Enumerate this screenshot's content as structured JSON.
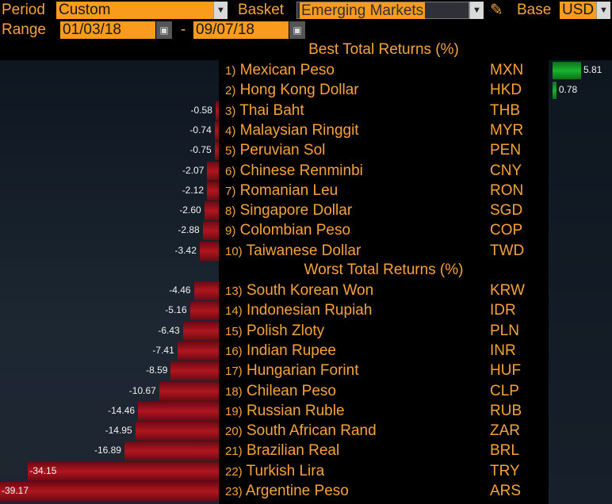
{
  "toolbar": {
    "period_label": "Period",
    "period_value": "Custom",
    "basket_label": "Basket",
    "basket_value": "Emerging Markets",
    "base_label": "Base",
    "base_value": "USD",
    "range_label": "Range",
    "range_start": "01/03/18",
    "range_sep": "-",
    "range_end": "09/07/18"
  },
  "best": {
    "title": "Best Total Returns (%)",
    "rows": [
      {
        "rank": "1)",
        "name": "Mexican Peso",
        "code": "MXN",
        "value": 5.81,
        "label": "5.81"
      },
      {
        "rank": "2)",
        "name": "Hong Kong Dollar",
        "code": "HKD",
        "value": 0.78,
        "label": "0.78"
      },
      {
        "rank": "3)",
        "name": "Thai Baht",
        "code": "THB",
        "value": -0.58,
        "label": "-0.58"
      },
      {
        "rank": "4)",
        "name": "Malaysian Ringgit",
        "code": "MYR",
        "value": -0.74,
        "label": "-0.74"
      },
      {
        "rank": "5)",
        "name": "Peruvian Sol",
        "code": "PEN",
        "value": -0.75,
        "label": "-0.75"
      },
      {
        "rank": "6)",
        "name": "Chinese Renminbi",
        "code": "CNY",
        "value": -2.07,
        "label": "-2.07"
      },
      {
        "rank": "7)",
        "name": "Romanian Leu",
        "code": "RON",
        "value": -2.12,
        "label": "-2.12"
      },
      {
        "rank": "8)",
        "name": "Singapore Dollar",
        "code": "SGD",
        "value": -2.6,
        "label": "-2.60"
      },
      {
        "rank": "9)",
        "name": "Colombian Peso",
        "code": "COP",
        "value": -2.88,
        "label": "-2.88"
      },
      {
        "rank": "10)",
        "name": "Taiwanese Dollar",
        "code": "TWD",
        "value": -3.42,
        "label": "-3.42"
      }
    ]
  },
  "worst": {
    "title": "Worst Total Returns (%)",
    "rows": [
      {
        "rank": "13)",
        "name": "South Korean Won",
        "code": "KRW",
        "value": -4.46,
        "label": "-4.46"
      },
      {
        "rank": "14)",
        "name": "Indonesian Rupiah",
        "code": "IDR",
        "value": -5.16,
        "label": "-5.16"
      },
      {
        "rank": "15)",
        "name": "Polish Zloty",
        "code": "PLN",
        "value": -6.43,
        "label": "-6.43"
      },
      {
        "rank": "16)",
        "name": "Indian Rupee",
        "code": "INR",
        "value": -7.41,
        "label": "-7.41"
      },
      {
        "rank": "17)",
        "name": "Hungarian Forint",
        "code": "HUF",
        "value": -8.59,
        "label": "-8.59"
      },
      {
        "rank": "18)",
        "name": "Chilean Peso",
        "code": "CLP",
        "value": -10.67,
        "label": "-10.67"
      },
      {
        "rank": "19)",
        "name": "Russian Ruble",
        "code": "RUB",
        "value": -14.46,
        "label": "-14.46"
      },
      {
        "rank": "20)",
        "name": "South African Rand",
        "code": "ZAR",
        "value": -14.95,
        "label": "-14.95"
      },
      {
        "rank": "21)",
        "name": "Brazilian Real",
        "code": "BRL",
        "value": -16.89,
        "label": "-16.89"
      },
      {
        "rank": "22)",
        "name": "Turkish Lira",
        "code": "TRY",
        "value": -34.15,
        "label": "-34.15"
      },
      {
        "rank": "23)",
        "name": "Argentine Peso",
        "code": "ARS",
        "value": -39.17,
        "label": "-39.17"
      }
    ]
  },
  "icons": {
    "dropdown": "chevron-down-icon",
    "calendar": "calendar-icon",
    "edit": "pencil-icon"
  },
  "colors": {
    "accent": "#f99b1c",
    "text": "#f7a33b",
    "negative_bar": "#b0151f",
    "positive_bar": "#19b52e"
  }
}
